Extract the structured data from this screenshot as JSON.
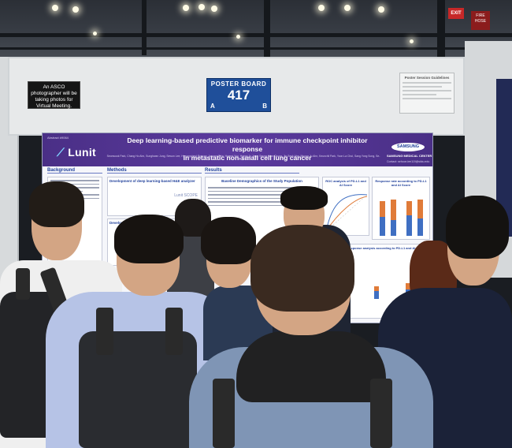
{
  "scene": {
    "asco_notice": "An ASCO photographer will be taking photos for Virtual Meeting.",
    "exit_sign": "EXIT",
    "fire_hose_label": "FIRE HOSE",
    "poster_board": {
      "label": "POSTER BOARD",
      "number": "417",
      "side_a": "A",
      "side_b": "B"
    },
    "notice_title": "Poster Session Guidelines"
  },
  "poster": {
    "abstract_number": "Abstract #9064",
    "brand": "Lunit",
    "title_line1": "Deep learning-based predictive biomarker for immune checkpoint inhibitor response",
    "title_line2": "in metastatic non-small cell lung cancer",
    "authors": "Seonwook Park, Chang Ho Ahn, Sunghwan Jung, Sewon Lee, Hyeongcheol Pyeong, Jaewon Shin, Hwanri Yoo, Hyeon Ju Jang, Seung-Won Chung, Jin Seok Ahn, Myung-Ju Ahn, Keunchil Park, Yoon La Choi, Sang Yong Song, Se-Hoon Lee",
    "partner": "SAMSUNG",
    "partner_sub": "SAMSUNG MEDICAL CENTER",
    "contact": "Contact: sehoon.lee119@skku.edu",
    "sections": {
      "background": "Background",
      "methods": "Methods",
      "results": "Results"
    },
    "methods_box": "Development of deep learning-based H&E analyzer",
    "methods_box2": "Development of Deep learning-based",
    "results_table_title": "Baseline Demographics of the Study Population",
    "roc_title": "ROC analysis of PD-L1 and AI Score",
    "response_title": "Response rate according to PD-L1 and AI Score",
    "bottom_title": "Response analysis according to PD-L1 and AI Score",
    "logo_scope": "Lunit SCOPE",
    "colors": {
      "header": "#4a2f86",
      "accent": "#1f3f9a",
      "bar_blue": "#3f6fc2",
      "bar_orange": "#e07b39"
    }
  }
}
